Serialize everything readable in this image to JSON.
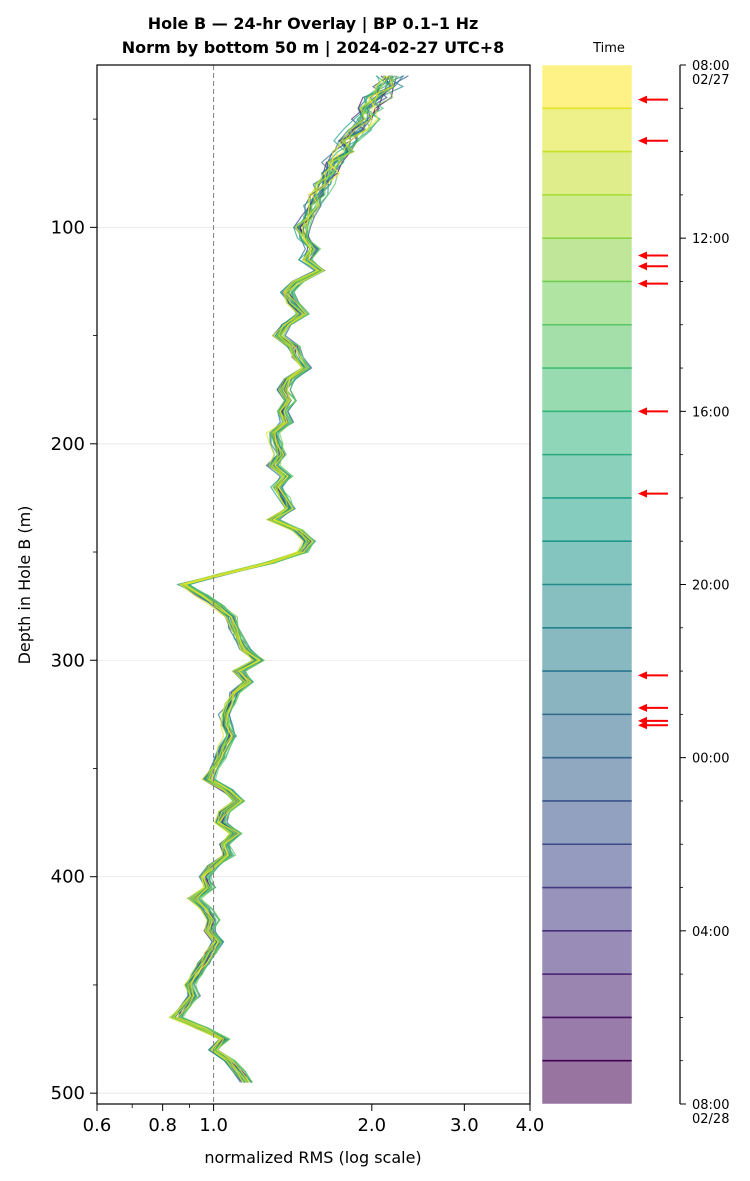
{
  "chart_data": {
    "type": "line",
    "title": "Hole B — 24-hr Overlay  |  BP 0.1–1 Hz",
    "subtitle": "Norm by bottom 50 m  |  2024-02-27 UTC+8",
    "xlabel": "normalized RMS  (log scale)",
    "ylabel": "Depth in Hole B (m)",
    "x_scale": "log",
    "xlim": [
      0.6,
      4.0
    ],
    "ylim": [
      505,
      25
    ],
    "y_inverted": true,
    "x_ticks": [
      0.6,
      0.8,
      1.0,
      2.0,
      3.0,
      4.0
    ],
    "x_tick_labels": [
      "0.6",
      "0.8",
      "1.0",
      "2.0",
      "3.0",
      "4.0"
    ],
    "y_ticks": [
      100,
      200,
      300,
      400,
      500
    ],
    "y_tick_labels": [
      "100",
      "200",
      "300",
      "400",
      "500"
    ],
    "grid": true,
    "reference_line": {
      "x": 1.0,
      "style": "dashed",
      "color": "#808080"
    },
    "series_count": 24,
    "series_note": "one trace per hourly window, colored by time (viridis)",
    "base_profile": {
      "depth": [
        30,
        35,
        40,
        45,
        50,
        55,
        60,
        65,
        70,
        75,
        80,
        85,
        90,
        95,
        100,
        105,
        110,
        115,
        120,
        125,
        130,
        135,
        140,
        145,
        150,
        155,
        160,
        165,
        170,
        175,
        180,
        185,
        190,
        195,
        200,
        205,
        210,
        215,
        220,
        225,
        230,
        235,
        240,
        245,
        250,
        255,
        260,
        265,
        270,
        275,
        280,
        285,
        290,
        295,
        300,
        305,
        310,
        315,
        320,
        325,
        330,
        335,
        340,
        345,
        350,
        355,
        360,
        365,
        370,
        375,
        380,
        385,
        390,
        395,
        400,
        405,
        410,
        415,
        420,
        425,
        430,
        435,
        440,
        445,
        450,
        455,
        460,
        465,
        470,
        475,
        480,
        485,
        490,
        495
      ],
      "rms": [
        2.2,
        2.15,
        2.05,
        1.98,
        1.95,
        1.88,
        1.8,
        1.78,
        1.7,
        1.68,
        1.62,
        1.58,
        1.55,
        1.52,
        1.47,
        1.5,
        1.55,
        1.5,
        1.6,
        1.45,
        1.38,
        1.42,
        1.48,
        1.38,
        1.33,
        1.42,
        1.44,
        1.5,
        1.4,
        1.36,
        1.4,
        1.35,
        1.38,
        1.3,
        1.32,
        1.34,
        1.3,
        1.38,
        1.32,
        1.36,
        1.4,
        1.3,
        1.45,
        1.52,
        1.48,
        1.28,
        1.05,
        0.88,
        0.95,
        1.02,
        1.08,
        1.1,
        1.12,
        1.15,
        1.22,
        1.12,
        1.16,
        1.1,
        1.08,
        1.05,
        1.06,
        1.08,
        1.05,
        1.03,
        1.0,
        0.98,
        1.06,
        1.12,
        1.05,
        1.03,
        1.1,
        1.05,
        1.07,
        1.0,
        0.96,
        0.98,
        0.92,
        0.97,
        1.0,
        0.98,
        1.02,
        0.99,
        0.96,
        0.93,
        0.9,
        0.92,
        0.88,
        0.85,
        0.95,
        1.05,
        1.0,
        1.07,
        1.12,
        1.16
      ]
    },
    "colorbar": {
      "label": "Time",
      "colormap": "viridis",
      "ticks": [
        "08:00",
        "12:00",
        "16:00",
        "20:00",
        "00:00",
        "04:00",
        "08:00"
      ],
      "tick_hours": [
        0,
        4,
        8,
        12,
        16,
        20,
        24
      ],
      "date_labels": [
        {
          "hour": 0,
          "label": "02/27"
        },
        {
          "hour": 24,
          "label": "02/28"
        }
      ],
      "hour_range": [
        0,
        24
      ],
      "band_count": 24,
      "marked_hours": [
        0.8,
        1.75,
        4.4,
        4.65,
        5.05,
        8.0,
        9.9,
        14.1,
        14.85,
        15.15,
        15.25
      ],
      "arrow_color": "#ff0000"
    }
  }
}
